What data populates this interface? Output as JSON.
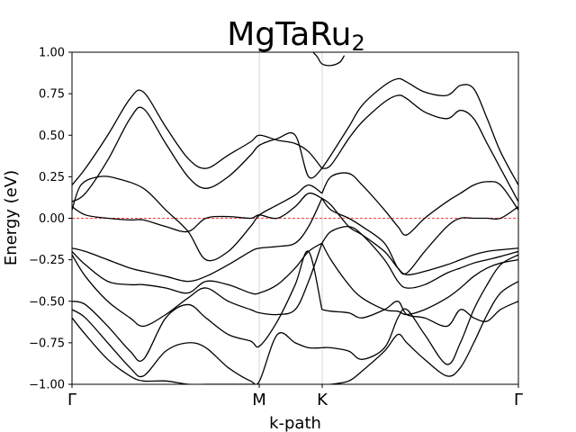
{
  "chart_data": {
    "type": "line",
    "title": "MgTaRu",
    "title_subscript": "2",
    "xlabel": "k-path",
    "ylabel": "Energy (eV)",
    "ylim": [
      -1.0,
      1.0
    ],
    "yticks": [
      -1.0,
      -0.75,
      -0.5,
      -0.25,
      0.0,
      0.25,
      0.5,
      0.75,
      1.0
    ],
    "ytick_labels": [
      "−1.00",
      "−0.75",
      "−0.50",
      "−0.25",
      "0.00",
      "0.25",
      "0.50",
      "0.75",
      "1.00"
    ],
    "xlim": [
      0,
      1
    ],
    "kpoints": [
      {
        "label": "Γ",
        "x": 0.0
      },
      {
        "label": "M",
        "x": 0.4194
      },
      {
        "label": "K",
        "x": 0.5605
      },
      {
        "label": "Γ",
        "x": 1.0
      }
    ],
    "fermi_level": 0.0,
    "fermi_color": "#ff0000",
    "band_color": "#000000",
    "series": [
      {
        "x": [
          0.0,
          0.03,
          0.08,
          0.13,
          0.16,
          0.21,
          0.26,
          0.3,
          0.35,
          0.4,
          0.42,
          0.46,
          0.5,
          0.53,
          0.56
        ],
        "values": [
          0.2,
          0.3,
          0.5,
          0.72,
          0.76,
          0.55,
          0.36,
          0.3,
          0.38,
          0.46,
          0.5,
          0.47,
          0.45,
          0.4,
          0.3
        ]
      },
      {
        "x": [
          0.56,
          0.58,
          0.62,
          0.65,
          0.7,
          0.73,
          0.75,
          0.79,
          0.84,
          0.87,
          0.9,
          0.93,
          0.96,
          1.0
        ],
        "values": [
          0.3,
          0.38,
          0.55,
          0.68,
          0.8,
          0.84,
          0.82,
          0.76,
          0.74,
          0.8,
          0.78,
          0.6,
          0.4,
          0.2
        ]
      },
      {
        "x": [
          0.0,
          0.03,
          0.08,
          0.13,
          0.16,
          0.21,
          0.26,
          0.3,
          0.35,
          0.4,
          0.42,
          0.46,
          0.5,
          0.53,
          0.56
        ],
        "values": [
          0.1,
          0.15,
          0.35,
          0.6,
          0.66,
          0.45,
          0.25,
          0.18,
          0.25,
          0.38,
          0.44,
          0.48,
          0.5,
          0.25,
          0.3
        ]
      },
      {
        "x": [
          0.56,
          0.58,
          0.62,
          0.65,
          0.7,
          0.73,
          0.75,
          0.79,
          0.84,
          0.87,
          0.9,
          0.93,
          0.96,
          1.0
        ],
        "values": [
          0.3,
          0.32,
          0.48,
          0.58,
          0.7,
          0.74,
          0.72,
          0.64,
          0.6,
          0.65,
          0.6,
          0.45,
          0.3,
          0.1
        ]
      },
      {
        "x": [
          0.0,
          0.03,
          0.08,
          0.13,
          0.16,
          0.21,
          0.26,
          0.3,
          0.35,
          0.4,
          0.42,
          0.46,
          0.5,
          0.53,
          0.56
        ],
        "values": [
          0.07,
          0.02,
          0.0,
          -0.01,
          -0.01,
          -0.05,
          -0.08,
          0.0,
          0.01,
          0.0,
          0.02,
          0.0,
          0.07,
          0.15,
          0.12
        ]
      },
      {
        "x": [
          0.56,
          0.58,
          0.62,
          0.65,
          0.7,
          0.73,
          0.75,
          0.79,
          0.84,
          0.87,
          0.9,
          0.93,
          0.96,
          1.0
        ],
        "values": [
          0.12,
          0.05,
          0.0,
          -0.05,
          -0.15,
          -0.3,
          -0.33,
          -0.2,
          -0.05,
          0.0,
          0.0,
          0.0,
          0.0,
          0.07
        ]
      },
      {
        "x": [
          0.0,
          0.02,
          0.06,
          0.1,
          0.16,
          0.21,
          0.26,
          0.3,
          0.35,
          0.4,
          0.42,
          0.46,
          0.5,
          0.53,
          0.56
        ],
        "values": [
          0.05,
          0.2,
          0.25,
          0.24,
          0.18,
          0.05,
          -0.08,
          -0.25,
          -0.2,
          -0.05,
          0.02,
          0.08,
          0.14,
          0.2,
          0.15
        ]
      },
      {
        "x": [
          0.56,
          0.58,
          0.62,
          0.65,
          0.7,
          0.73,
          0.75,
          0.79,
          0.84,
          0.87,
          0.9,
          0.93,
          0.96,
          1.0
        ],
        "values": [
          0.15,
          0.25,
          0.27,
          0.2,
          0.05,
          -0.05,
          -0.1,
          0.0,
          0.1,
          0.15,
          0.2,
          0.22,
          0.2,
          0.05
        ]
      },
      {
        "x": [
          0.0,
          0.03,
          0.08,
          0.13,
          0.16,
          0.21,
          0.26,
          0.3,
          0.35,
          0.4,
          0.42,
          0.46,
          0.5,
          0.53,
          0.56
        ],
        "values": [
          -0.18,
          -0.2,
          -0.25,
          -0.3,
          -0.32,
          -0.35,
          -0.38,
          -0.35,
          -0.28,
          -0.2,
          -0.18,
          -0.17,
          -0.15,
          -0.05,
          0.12
        ]
      },
      {
        "x": [
          0.56,
          0.58,
          0.62,
          0.65,
          0.7,
          0.73,
          0.75,
          0.79,
          0.84,
          0.87,
          0.9,
          0.93,
          0.96,
          1.0
        ],
        "values": [
          0.12,
          0.08,
          -0.05,
          -0.1,
          -0.2,
          -0.3,
          -0.34,
          -0.32,
          -0.28,
          -0.25,
          -0.22,
          -0.2,
          -0.19,
          -0.18
        ]
      },
      {
        "x": [
          0.0,
          0.03,
          0.08,
          0.13,
          0.16,
          0.21,
          0.26,
          0.3,
          0.35,
          0.4,
          0.42,
          0.46,
          0.5,
          0.53,
          0.56
        ],
        "values": [
          -0.2,
          -0.28,
          -0.38,
          -0.4,
          -0.4,
          -0.42,
          -0.45,
          -0.38,
          -0.4,
          -0.45,
          -0.45,
          -0.4,
          -0.3,
          -0.2,
          -0.15
        ]
      },
      {
        "x": [
          0.56,
          0.58,
          0.62,
          0.65,
          0.7,
          0.73,
          0.75,
          0.79,
          0.84,
          0.87,
          0.9,
          0.93,
          0.96,
          1.0
        ],
        "values": [
          -0.15,
          -0.08,
          -0.05,
          -0.1,
          -0.25,
          -0.38,
          -0.42,
          -0.4,
          -0.33,
          -0.3,
          -0.27,
          -0.25,
          -0.23,
          -0.2
        ]
      },
      {
        "x": [
          0.0,
          0.03,
          0.08,
          0.13,
          0.16,
          0.21,
          0.26,
          0.3,
          0.35,
          0.4,
          0.42,
          0.46,
          0.5,
          0.53,
          0.56
        ],
        "values": [
          -0.22,
          -0.35,
          -0.5,
          -0.6,
          -0.65,
          -0.58,
          -0.48,
          -0.42,
          -0.5,
          -0.55,
          -0.57,
          -0.58,
          -0.55,
          -0.38,
          -0.15
        ]
      },
      {
        "x": [
          0.56,
          0.58,
          0.62,
          0.65,
          0.7,
          0.73,
          0.75,
          0.79,
          0.84,
          0.87,
          0.9,
          0.93,
          0.96,
          1.0
        ],
        "values": [
          -0.15,
          -0.25,
          -0.4,
          -0.48,
          -0.55,
          -0.56,
          -0.58,
          -0.55,
          -0.48,
          -0.42,
          -0.35,
          -0.3,
          -0.27,
          -0.25
        ]
      },
      {
        "x": [
          0.0,
          0.03,
          0.08,
          0.13,
          0.16,
          0.21,
          0.26,
          0.3,
          0.35,
          0.4,
          0.42,
          0.46,
          0.5,
          0.53,
          0.56
        ],
        "values": [
          -0.5,
          -0.52,
          -0.65,
          -0.8,
          -0.85,
          -0.6,
          -0.52,
          -0.6,
          -0.7,
          -0.74,
          -0.77,
          -0.62,
          -0.4,
          -0.2,
          -0.55
        ]
      },
      {
        "x": [
          0.56,
          0.58,
          0.62,
          0.65,
          0.7,
          0.73,
          0.75,
          0.79,
          0.84,
          0.87,
          0.9,
          0.93,
          0.96,
          1.0
        ],
        "values": [
          -0.55,
          -0.56,
          -0.57,
          -0.6,
          -0.55,
          -0.5,
          -0.58,
          -0.6,
          -0.65,
          -0.55,
          -0.6,
          -0.62,
          -0.55,
          -0.5
        ]
      },
      {
        "x": [
          0.0,
          0.03,
          0.08,
          0.13,
          0.16,
          0.21,
          0.26,
          0.3,
          0.35,
          0.4,
          0.42,
          0.46,
          0.5,
          0.53,
          0.56
        ],
        "values": [
          -0.55,
          -0.6,
          -0.75,
          -0.9,
          -0.95,
          -0.8,
          -0.75,
          -0.78,
          -0.9,
          -0.98,
          -0.98,
          -0.7,
          -0.75,
          -0.78,
          -0.78
        ]
      },
      {
        "x": [
          0.56,
          0.58,
          0.62,
          0.65,
          0.7,
          0.73,
          0.75,
          0.79,
          0.84,
          0.87,
          0.9,
          0.93,
          0.96,
          1.0
        ],
        "values": [
          -0.78,
          -0.78,
          -0.8,
          -0.85,
          -0.78,
          -0.6,
          -0.55,
          -0.7,
          -0.88,
          -0.75,
          -0.55,
          -0.4,
          -0.28,
          -0.22
        ]
      },
      {
        "x": [
          0.0,
          0.03,
          0.08,
          0.13,
          0.16,
          0.21,
          0.26,
          0.3,
          0.35,
          0.4,
          0.42
        ],
        "values": [
          -0.6,
          -0.7,
          -0.85,
          -0.95,
          -0.98,
          -0.98,
          -1.0,
          -1.0,
          -1.0,
          -1.0,
          -1.0
        ]
      },
      {
        "x": [
          0.56,
          0.58,
          0.62,
          0.65,
          0.7,
          0.73,
          0.75,
          0.79,
          0.84,
          0.87,
          0.9,
          0.93,
          0.96,
          1.0
        ],
        "values": [
          -1.0,
          -1.0,
          -0.98,
          -0.92,
          -0.8,
          -0.7,
          -0.75,
          -0.85,
          -0.95,
          -0.9,
          -0.75,
          -0.58,
          -0.45,
          -0.38
        ]
      },
      {
        "x": [
          0.54,
          0.55,
          0.56,
          0.58,
          0.6,
          0.61
        ],
        "values": [
          1.0,
          0.97,
          0.93,
          0.92,
          0.94,
          0.98
        ]
      }
    ]
  }
}
